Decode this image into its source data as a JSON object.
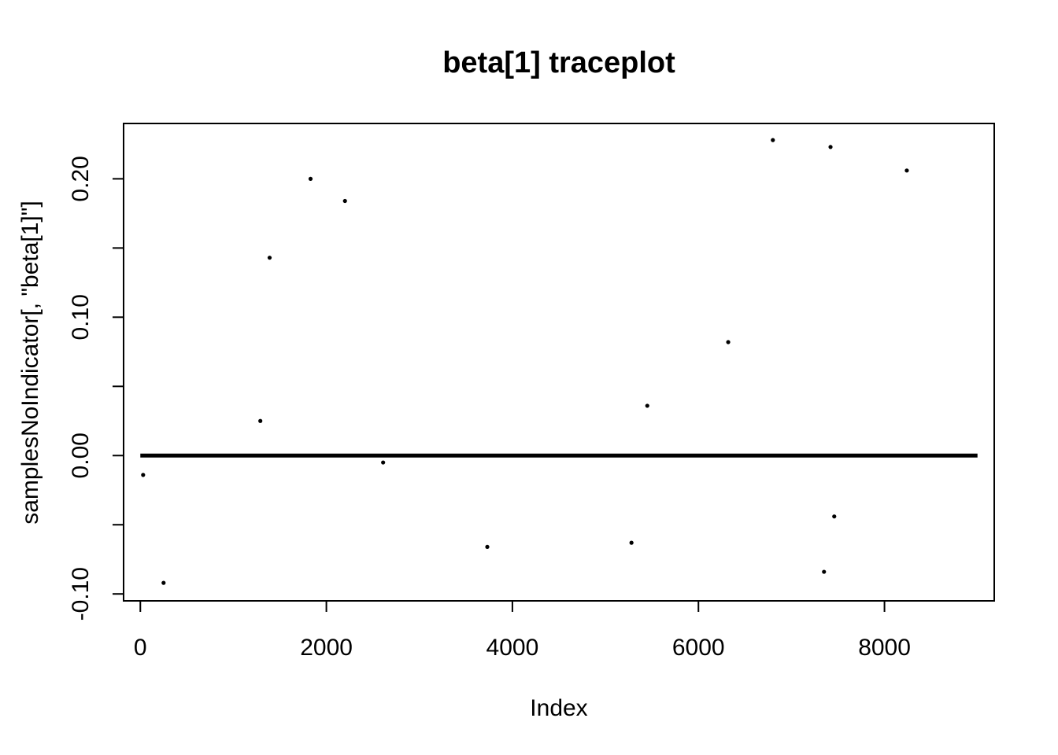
{
  "chart_data": {
    "type": "scatter",
    "title": "beta[1] traceplot",
    "xlabel": "Index",
    "ylabel": "samplesNoIndicator[, \"beta[1]\"]",
    "xlim": [
      -180,
      9180
    ],
    "ylim": [
      -0.105,
      0.24
    ],
    "x_ticks": [
      0,
      2000,
      4000,
      6000,
      8000
    ],
    "x_tick_labels": [
      "0",
      "2000",
      "4000",
      "6000",
      "8000"
    ],
    "y_ticks": [
      -0.1,
      -0.05,
      0.0,
      0.05,
      0.1,
      0.15,
      0.2
    ],
    "y_tick_labels": [
      "-0.10",
      "",
      "0.00",
      "",
      "0.10",
      "",
      "0.20"
    ],
    "grid": false,
    "baseline": {
      "x_from": 0,
      "x_to": 9000,
      "y": 0.0
    },
    "series": [
      {
        "x": [
          30,
          250,
          1290,
          1390,
          1830,
          2200,
          2610,
          3730,
          5280,
          5450,
          6320,
          6800,
          7350,
          7420,
          7460,
          8240
        ],
        "y": [
          -0.014,
          -0.092,
          0.025,
          0.143,
          0.2,
          0.184,
          -0.005,
          -0.066,
          -0.063,
          0.036,
          0.082,
          0.228,
          -0.084,
          0.223,
          -0.044,
          0.206
        ]
      }
    ]
  }
}
